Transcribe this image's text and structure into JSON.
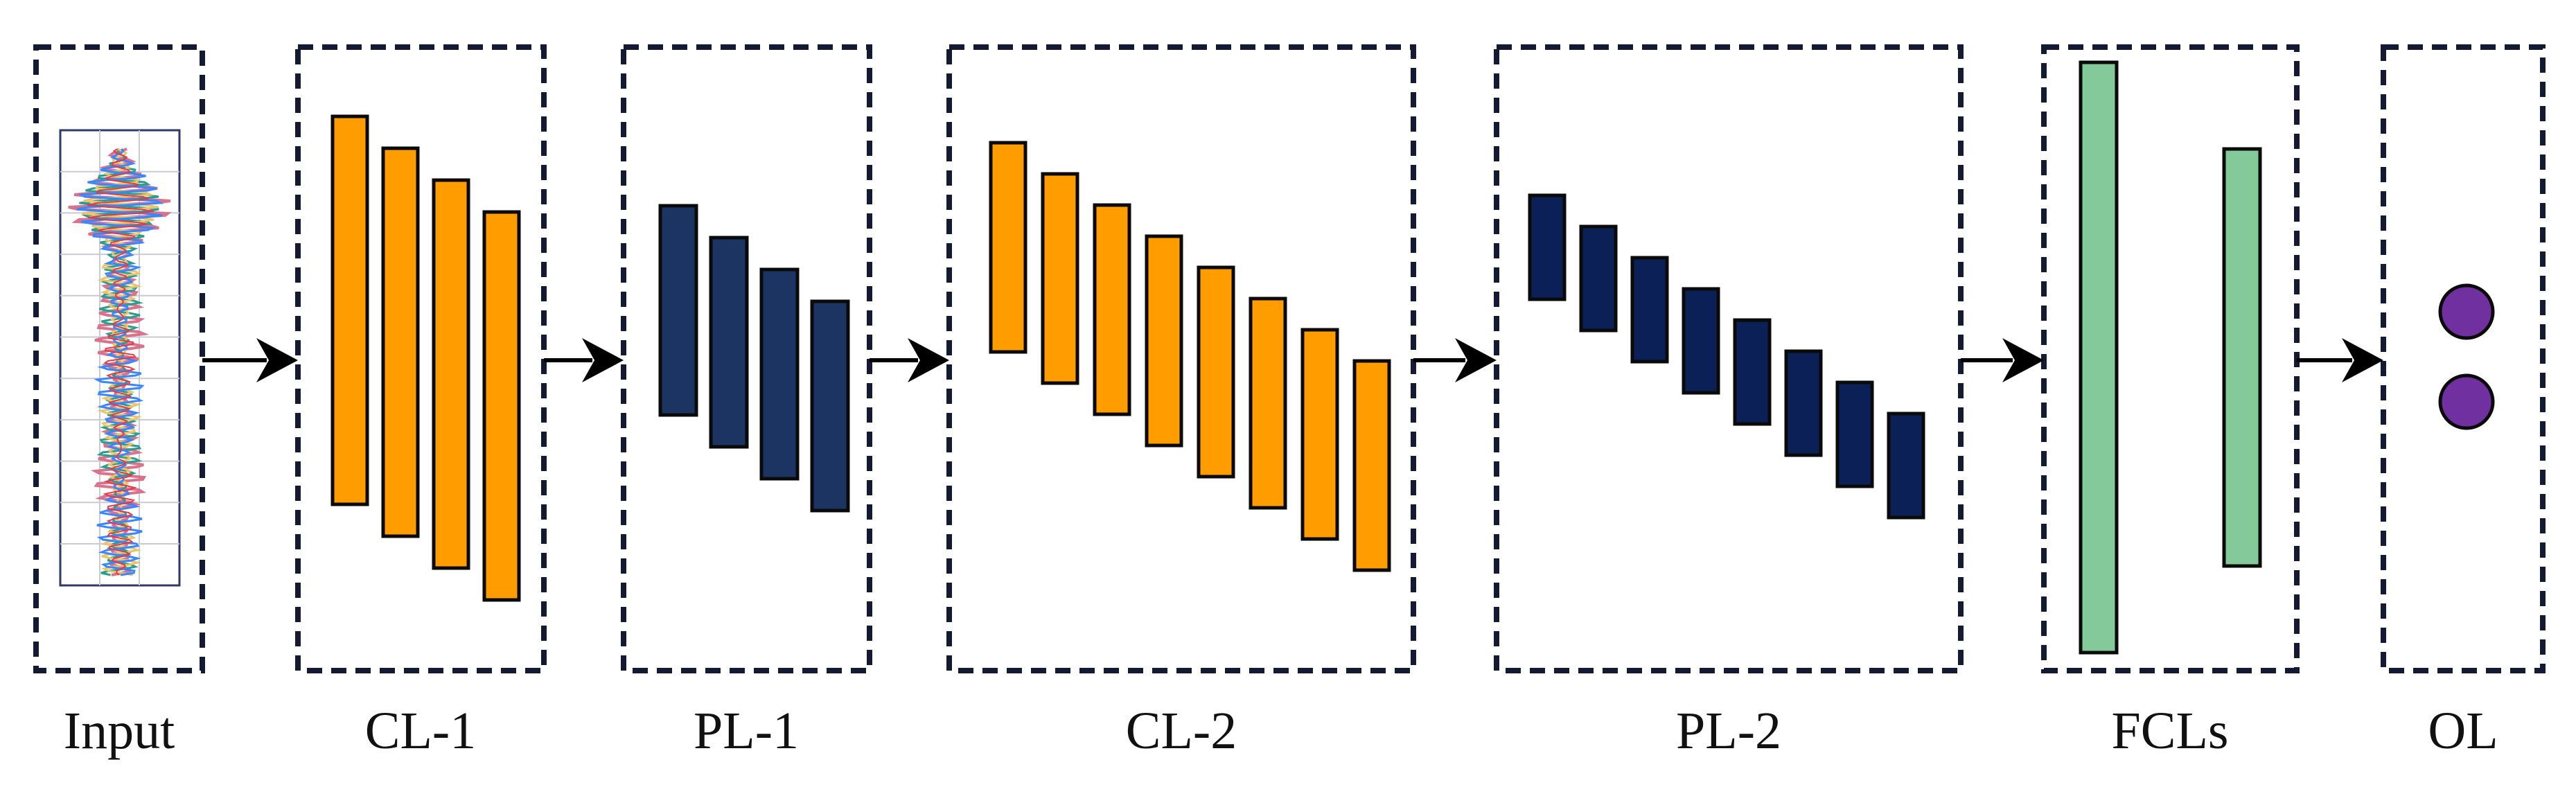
{
  "stages": [
    {
      "label": "Input"
    },
    {
      "label": "CL-1"
    },
    {
      "label": "PL-1"
    },
    {
      "label": "CL-2"
    },
    {
      "label": "PL-2"
    },
    {
      "label": "FCLs"
    },
    {
      "label": "OL"
    }
  ],
  "colors": {
    "convolution": "#ff9c00",
    "pool_1": "#1c3461",
    "pool_2": "#0b2057",
    "fully_connected": "#84c99a",
    "output_neuron": "#7030a0",
    "border": "#151a33"
  },
  "layers": {
    "cl1_feature_maps": 4,
    "pl1_feature_maps": 4,
    "cl2_feature_maps": 8,
    "pl2_feature_maps": 8,
    "fcl_layers": 2,
    "output_neurons": 2
  },
  "input_icon": "waveform-signal-icon"
}
